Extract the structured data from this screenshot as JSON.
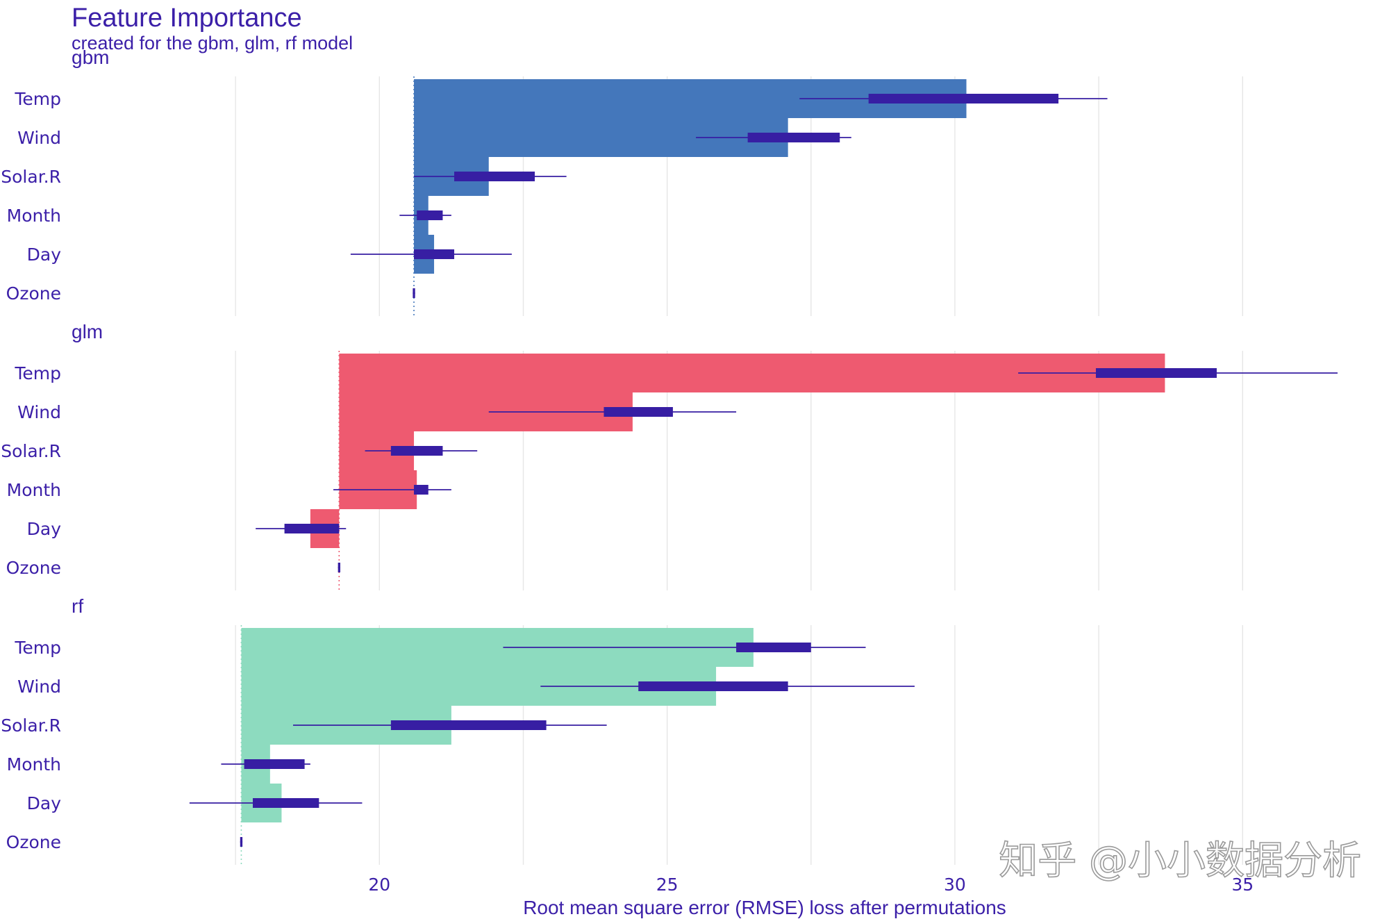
{
  "chart_data": {
    "type": "bar",
    "title": "Feature Importance",
    "subtitle": "created for the gbm, glm, rf model",
    "xlabel": "Root mean square error (RMSE) loss after permutations",
    "ylabel": "",
    "xlim": [
      15.7,
      37.7
    ],
    "xticks": [
      20,
      25,
      30,
      35
    ],
    "xtick_labels": [
      "20",
      "25",
      "30",
      "35"
    ],
    "gridlines_minor": [
      17.5,
      22.5,
      27.5,
      32.5
    ],
    "grid": true,
    "features": [
      "Temp",
      "Wind",
      "Solar.R",
      "Month",
      "Day",
      "Ozone"
    ],
    "panels": [
      {
        "model": "gbm",
        "color": "#4477BB",
        "baseline": 20.6,
        "values": [
          30.2,
          27.1,
          21.9,
          20.85,
          20.95,
          20.6
        ],
        "box": [
          {
            "low": 28.5,
            "high": 31.8
          },
          {
            "low": 26.4,
            "high": 28.0
          },
          {
            "low": 21.3,
            "high": 22.7
          },
          {
            "low": 20.65,
            "high": 21.1
          },
          {
            "low": 20.6,
            "high": 21.3
          },
          {
            "low": 20.58,
            "high": 20.62
          }
        ],
        "whisker": [
          {
            "low": 27.3,
            "high": 32.65
          },
          {
            "low": 25.5,
            "high": 28.2
          },
          {
            "low": 20.6,
            "high": 23.25
          },
          {
            "low": 20.35,
            "high": 21.25
          },
          {
            "low": 19.5,
            "high": 22.3
          },
          {
            "low": 20.58,
            "high": 20.62
          }
        ]
      },
      {
        "model": "glm",
        "color": "#EE5A70",
        "baseline": 19.3,
        "values": [
          33.65,
          24.4,
          20.6,
          20.65,
          18.8,
          19.3
        ],
        "box": [
          {
            "low": 32.45,
            "high": 34.55
          },
          {
            "low": 23.9,
            "high": 25.1
          },
          {
            "low": 20.2,
            "high": 21.1
          },
          {
            "low": 20.6,
            "high": 20.85
          },
          {
            "low": 18.35,
            "high": 19.3
          },
          {
            "low": 19.28,
            "high": 19.32
          }
        ],
        "whisker": [
          {
            "low": 31.1,
            "high": 36.65
          },
          {
            "low": 21.9,
            "high": 26.2
          },
          {
            "low": 19.75,
            "high": 21.7
          },
          {
            "low": 19.2,
            "high": 21.25
          },
          {
            "low": 17.85,
            "high": 19.42
          },
          {
            "low": 19.28,
            "high": 19.32
          }
        ]
      },
      {
        "model": "rf",
        "color": "#8DDBBF",
        "baseline": 17.6,
        "values": [
          26.5,
          25.85,
          21.25,
          18.1,
          18.3,
          17.6
        ],
        "box": [
          {
            "low": 26.2,
            "high": 27.5
          },
          {
            "low": 24.5,
            "high": 27.1
          },
          {
            "low": 20.2,
            "high": 22.9
          },
          {
            "low": 17.65,
            "high": 18.7
          },
          {
            "low": 17.8,
            "high": 18.95
          },
          {
            "low": 17.58,
            "high": 17.62
          }
        ],
        "whisker": [
          {
            "low": 22.15,
            "high": 28.45
          },
          {
            "low": 22.8,
            "high": 29.3
          },
          {
            "low": 18.5,
            "high": 23.95
          },
          {
            "low": 17.25,
            "high": 18.8
          },
          {
            "low": 16.7,
            "high": 19.7
          },
          {
            "low": 17.58,
            "high": 17.62
          }
        ]
      }
    ]
  },
  "style": {
    "text_color": "#3B1FA8",
    "box_color": "#371EA3",
    "grid_color": "#e6e6e6"
  },
  "watermark": "知乎 @小小数据分析"
}
